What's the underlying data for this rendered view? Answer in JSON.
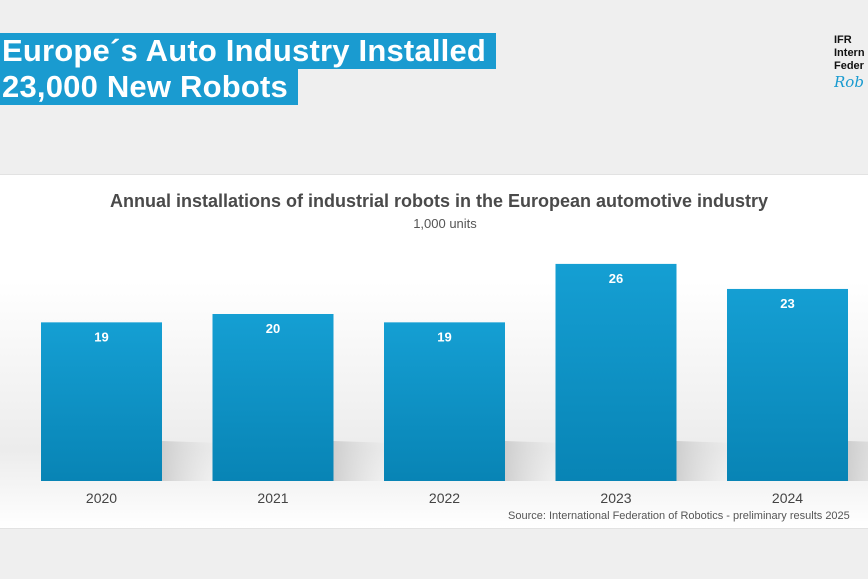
{
  "slide": {
    "title_line1": "Europe´s Auto Industry Installed",
    "title_line2": "23,000 New Robots"
  },
  "logo": {
    "line1": "IFR",
    "line2": "Intern",
    "line3": "Feder",
    "script": "Rob"
  },
  "colors": {
    "accent": "#1a9bd0",
    "bar_top": "#159fd3",
    "bar_bottom": "#0884b5"
  },
  "chart_data": {
    "type": "bar",
    "title": "Annual installations of industrial robots in the European automotive industry",
    "subtitle": "1,000 units",
    "categories": [
      "2020",
      "2021",
      "2022",
      "2023",
      "2024"
    ],
    "values": [
      19,
      20,
      19,
      26,
      23
    ],
    "data_labels": [
      "19",
      "20",
      "19",
      "26",
      "23"
    ],
    "ylim": [
      0,
      30
    ],
    "grid": false,
    "legend": "none",
    "source": "Source: International Federation of Robotics - preliminary results 2025"
  }
}
